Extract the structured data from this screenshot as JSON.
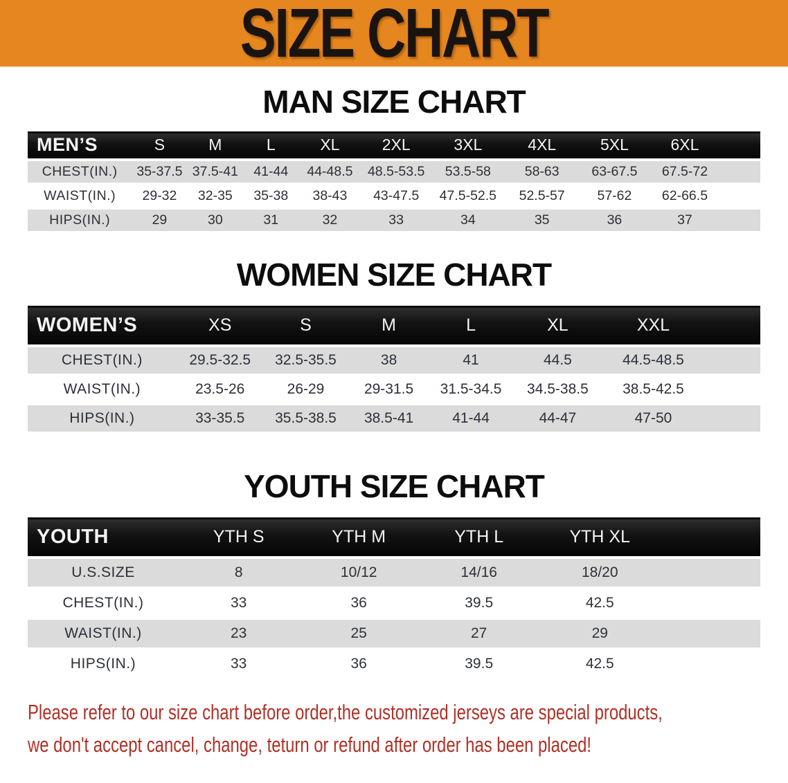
{
  "banner": {
    "title": "SIZE CHART"
  },
  "sections": [
    {
      "id": "men",
      "title": "MAN SIZE CHART",
      "header_label": "MEN’S",
      "columns": [
        "S",
        "M",
        "L",
        "XL",
        "2XL",
        "3XL",
        "4XL",
        "5XL",
        "6XL"
      ],
      "rows": [
        {
          "label": "CHEST(IN.)",
          "values": [
            "35-37.5",
            "37.5-41",
            "41-44",
            "44-48.5",
            "48.5-53.5",
            "53.5-58",
            "58-63",
            "63-67.5",
            "67.5-72"
          ]
        },
        {
          "label": "WAIST(IN.)",
          "values": [
            "29-32",
            "32-35",
            "35-38",
            "38-43",
            "43-47.5",
            "47.5-52.5",
            "52.5-57",
            "57-62",
            "62-66.5"
          ]
        },
        {
          "label": "HIPS(IN.)",
          "values": [
            "29",
            "30",
            "31",
            "32",
            "33",
            "34",
            "35",
            "36",
            "37"
          ]
        }
      ]
    },
    {
      "id": "women",
      "title": "WOMEN SIZE CHART",
      "header_label": "WOMEN’S",
      "columns": [
        "XS",
        "S",
        "M",
        "L",
        "XL",
        "XXL"
      ],
      "rows": [
        {
          "label": "CHEST(IN.)",
          "values": [
            "29.5-32.5",
            "32.5-35.5",
            "38",
            "41",
            "44.5",
            "44.5-48.5"
          ]
        },
        {
          "label": "WAIST(IN.)",
          "values": [
            "23.5-26",
            "26-29",
            "29-31.5",
            "31.5-34.5",
            "34.5-38.5",
            "38.5-42.5"
          ]
        },
        {
          "label": "HIPS(IN.)",
          "values": [
            "33-35.5",
            "35.5-38.5",
            "38.5-41",
            "41-44",
            "44-47",
            "47-50"
          ]
        }
      ]
    },
    {
      "id": "youth",
      "title": "YOUTH SIZE CHART",
      "header_label": "YOUTH",
      "columns": [
        "YTH S",
        "YTH M",
        "YTH L",
        "YTH XL"
      ],
      "rows": [
        {
          "label": "U.S.SIZE",
          "values": [
            "8",
            "10/12",
            "14/16",
            "18/20"
          ]
        },
        {
          "label": "CHEST(IN.)",
          "values": [
            "33",
            "36",
            "39.5",
            "42.5"
          ]
        },
        {
          "label": "WAIST(IN.)",
          "values": [
            "23",
            "25",
            "27",
            "29"
          ]
        },
        {
          "label": "HIPS(IN.)",
          "values": [
            "33",
            "36",
            "39.5",
            "42.5"
          ]
        }
      ]
    }
  ],
  "disclaimer": {
    "line1": "Please refer to our size chart before order,the customized jerseys are special products,",
    "line2": "we don't accept cancel, change, teturn or refund after order has been placed!"
  },
  "colors": {
    "banner_bg": "#E5861E",
    "header_bg": "#141414",
    "row_alt": "#DBDBDB",
    "text_dark": "#2C3037",
    "disclaimer": "#B03026"
  }
}
